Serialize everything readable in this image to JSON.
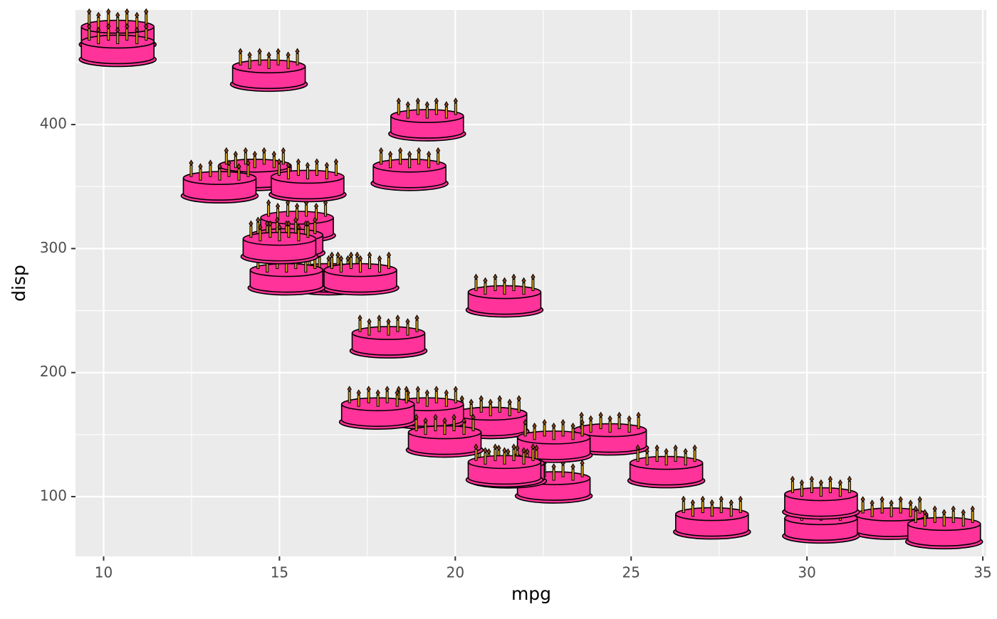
{
  "chart_data": {
    "type": "scatter",
    "x_label": "mpg",
    "y_label": "disp",
    "x": [
      21.0,
      21.0,
      22.8,
      21.4,
      18.7,
      18.1,
      14.3,
      24.4,
      22.8,
      19.2,
      17.8,
      16.4,
      17.3,
      15.2,
      10.4,
      10.4,
      14.7,
      32.4,
      30.4,
      33.9,
      21.5,
      15.5,
      15.2,
      13.3,
      19.2,
      27.3,
      26.0,
      30.4,
      15.8,
      19.7,
      15.0,
      21.4
    ],
    "values": [
      160,
      160,
      108,
      258,
      360,
      225,
      360,
      146.7,
      140.8,
      167.6,
      167.6,
      275.8,
      275.8,
      275.8,
      472,
      460,
      440,
      78.7,
      75.7,
      71.1,
      120.1,
      318,
      304,
      350,
      400,
      79,
      120.3,
      95.1,
      351,
      145,
      301,
      121
    ],
    "color": "#ff3399",
    "xlim": [
      9.2,
      35.1
    ],
    "ylim": [
      51.8,
      492.4
    ],
    "xticks": [
      10,
      15,
      20,
      25,
      30,
      35
    ],
    "yticks": [
      100,
      200,
      300,
      400
    ],
    "x_minor_grid": [
      12.5,
      17.5,
      22.5,
      27.5,
      32.5
    ],
    "y_minor_grid": [
      150,
      250,
      350,
      450
    ],
    "grid": true
  }
}
